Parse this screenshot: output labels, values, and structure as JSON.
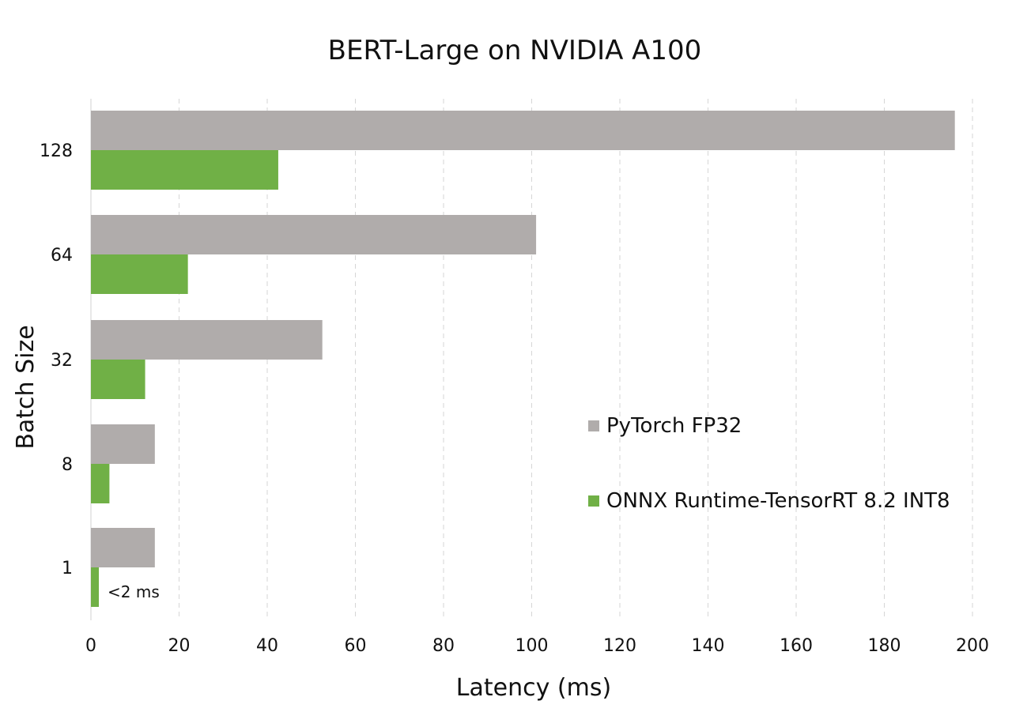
{
  "chart_data": {
    "type": "bar",
    "orientation": "horizontal",
    "title": "BERT-Large on NVIDIA A100",
    "xlabel": "Latency (ms)",
    "ylabel": "Batch Size",
    "categories": [
      "128",
      "64",
      "32",
      "8",
      "1"
    ],
    "series": [
      {
        "name": "PyTorch FP32",
        "color": "#b0acab",
        "values": [
          196,
          101,
          52.5,
          14.5,
          14.5
        ]
      },
      {
        "name": "ONNX Runtime-TensorRT 8.2 INT8",
        "color": "#70b046",
        "values": [
          42.5,
          22,
          12.3,
          4.2,
          1.8
        ]
      }
    ],
    "xlim": [
      0,
      200
    ],
    "xticks": [
      0,
      20,
      40,
      60,
      80,
      100,
      120,
      140,
      160,
      180,
      200
    ],
    "grid": "vertical dashed",
    "legend": "right",
    "annotations": [
      {
        "category": "1",
        "series": "ONNX Runtime-TensorRT 8.2 INT8",
        "text": "<2 ms"
      }
    ]
  }
}
